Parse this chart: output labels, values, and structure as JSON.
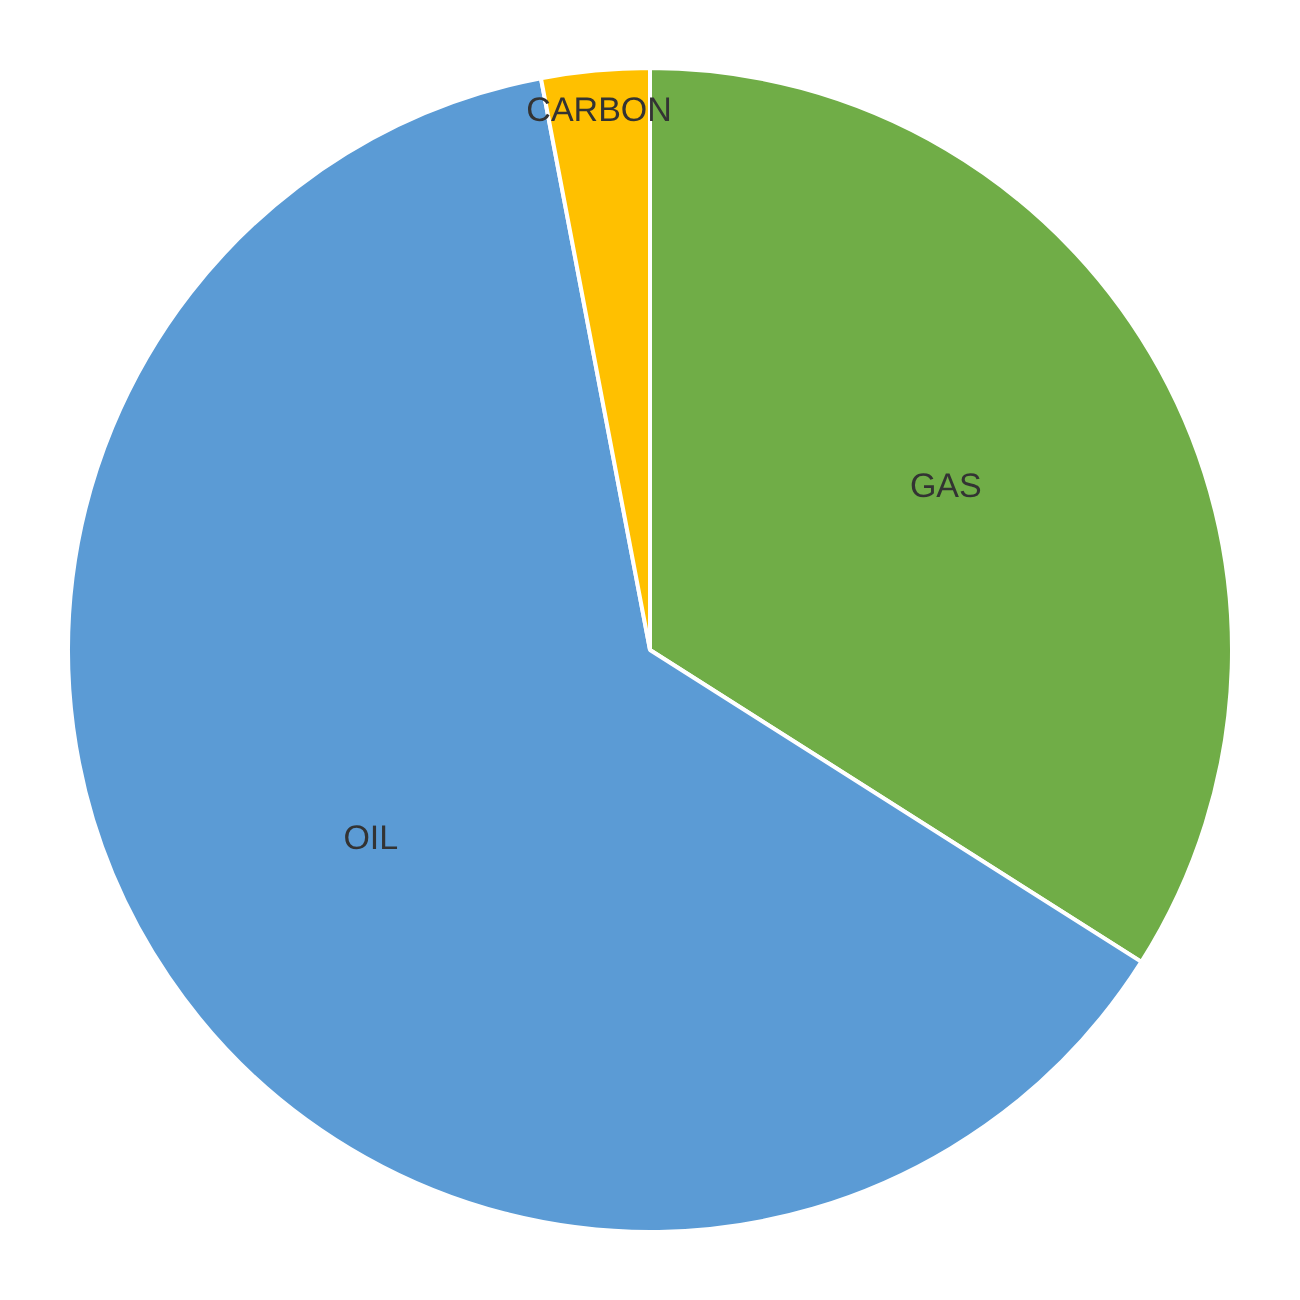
{
  "chart_data": {
    "type": "pie",
    "categories": [
      "GAS",
      "OIL",
      "CARBON"
    ],
    "values": [
      34,
      63,
      3
    ],
    "colors": [
      "#70ad47",
      "#5b9bd5",
      "#ffc000"
    ],
    "legend": false
  }
}
